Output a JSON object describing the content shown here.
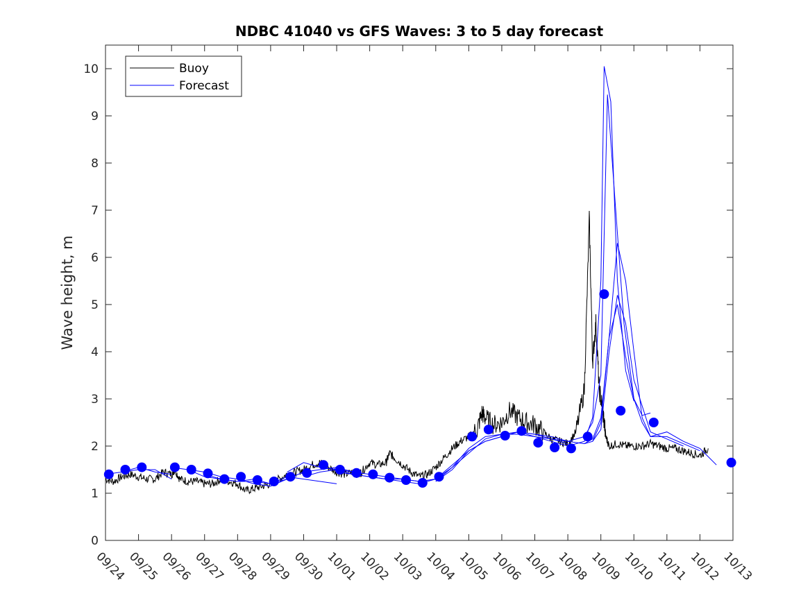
{
  "chart_data": {
    "type": "line",
    "title": "NDBC 41040 vs GFS Waves: 3 to 5 day forecast",
    "xlabel": "",
    "ylabel": "Wave height, m",
    "xlim": [
      0,
      19
    ],
    "ylim": [
      0,
      10.5
    ],
    "x_tick_labels": [
      "09/24",
      "09/25",
      "09/26",
      "09/27",
      "09/28",
      "09/29",
      "09/30",
      "10/01",
      "10/02",
      "10/03",
      "10/04",
      "10/05",
      "10/06",
      "10/07",
      "10/08",
      "10/09",
      "10/10",
      "10/11",
      "10/12",
      "10/13"
    ],
    "y_ticks": [
      "0",
      "1",
      "2",
      "3",
      "4",
      "5",
      "6",
      "7",
      "8",
      "9",
      "10"
    ],
    "legend": {
      "position": "top-left",
      "entries": [
        "Buoy",
        "Forecast"
      ]
    },
    "colors": {
      "buoy": "#000000",
      "forecast": "#0000ff",
      "axes": "#262626"
    },
    "buoy": {
      "name": "Buoy",
      "x": [
        0.0,
        0.25,
        0.5,
        0.75,
        1.0,
        1.25,
        1.5,
        1.75,
        2.0,
        2.1,
        2.25,
        2.5,
        2.75,
        3.0,
        3.25,
        3.5,
        3.75,
        4.0,
        4.25,
        4.5,
        4.75,
        5.0,
        5.25,
        5.5,
        5.75,
        6.0,
        6.25,
        6.5,
        6.75,
        7.0,
        7.25,
        7.5,
        7.65,
        7.75,
        8.0,
        8.25,
        8.5,
        8.6,
        8.75,
        9.0,
        9.25,
        9.5,
        9.75,
        10.0,
        10.25,
        10.5,
        10.75,
        11.0,
        11.25,
        11.4,
        11.5,
        11.75,
        12.0,
        12.25,
        12.5,
        12.75,
        13.0,
        13.25,
        13.5,
        13.75,
        14.0,
        14.25,
        14.5,
        14.65,
        14.75,
        14.85,
        14.95,
        15.05,
        15.15,
        15.25,
        15.5,
        15.75,
        16.0,
        16.25,
        16.5,
        16.75,
        17.0,
        17.25,
        17.5,
        17.75,
        18.0,
        18.25
      ],
      "values": [
        1.3,
        1.25,
        1.35,
        1.4,
        1.35,
        1.3,
        1.3,
        1.45,
        1.4,
        1.5,
        1.3,
        1.25,
        1.25,
        1.2,
        1.2,
        1.3,
        1.25,
        1.2,
        1.05,
        1.1,
        1.15,
        1.2,
        1.3,
        1.4,
        1.45,
        1.5,
        1.6,
        1.65,
        1.55,
        1.45,
        1.4,
        1.45,
        1.4,
        1.45,
        1.65,
        1.6,
        1.65,
        1.85,
        1.75,
        1.6,
        1.45,
        1.35,
        1.4,
        1.55,
        1.75,
        1.95,
        2.1,
        2.2,
        2.35,
        2.7,
        2.6,
        2.45,
        2.5,
        2.75,
        2.6,
        2.5,
        2.45,
        2.3,
        2.15,
        2.1,
        2.05,
        2.3,
        3.2,
        6.8,
        3.8,
        4.6,
        3.2,
        2.8,
        2.2,
        2.0,
        2.05,
        2.0,
        2.0,
        2.0,
        2.05,
        2.0,
        1.95,
        1.95,
        1.9,
        1.85,
        1.8,
        1.95
      ]
    },
    "forecast_runs": [
      {
        "x": [
          0.0,
          0.5,
          1.0,
          1.5,
          2.0
        ],
        "values": [
          1.4,
          1.45,
          1.55,
          1.45,
          1.4
        ]
      },
      {
        "x": [
          0.5,
          1.0,
          1.5,
          2.0
        ],
        "values": [
          1.45,
          1.5,
          1.5,
          1.3
        ]
      },
      {
        "x": [
          2.0,
          2.5,
          3.0,
          3.5,
          4.0,
          4.5,
          5.0,
          5.5,
          6.0,
          6.5,
          7.0
        ],
        "values": [
          1.55,
          1.5,
          1.35,
          1.3,
          1.25,
          1.25,
          1.2,
          1.35,
          1.3,
          1.25,
          1.2
        ]
      },
      {
        "x": [
          2.5,
          3.0,
          3.5,
          4.0,
          4.5,
          5.0,
          5.5
        ],
        "values": [
          1.5,
          1.45,
          1.35,
          1.3,
          1.2,
          1.15,
          1.3
        ]
      },
      {
        "x": [
          3.0,
          3.5,
          4.0,
          4.5,
          5.0,
          5.5,
          6.0,
          6.5,
          7.0,
          7.5
        ],
        "values": [
          1.4,
          1.3,
          1.25,
          1.3,
          1.2,
          1.3,
          1.45,
          1.5,
          1.55,
          1.45
        ]
      },
      {
        "x": [
          5.5,
          6.0,
          6.5,
          7.0,
          7.5,
          8.0,
          8.5,
          9.0
        ],
        "values": [
          1.45,
          1.65,
          1.55,
          1.5,
          1.45,
          1.4,
          1.35,
          1.3
        ]
      },
      {
        "x": [
          6.0,
          6.5,
          7.0,
          7.5,
          8.0,
          8.5,
          9.0,
          9.5,
          10.0
        ],
        "values": [
          1.35,
          1.45,
          1.5,
          1.4,
          1.35,
          1.3,
          1.3,
          1.25,
          1.3
        ]
      },
      {
        "x": [
          7.0,
          7.5,
          8.0,
          8.5,
          9.0,
          9.5,
          10.0,
          10.5,
          11.0,
          11.5,
          12.0,
          12.5,
          13.0,
          13.5,
          14.0
        ],
        "values": [
          1.45,
          1.4,
          1.35,
          1.3,
          1.25,
          1.2,
          1.3,
          1.6,
          1.9,
          2.1,
          2.2,
          2.3,
          2.25,
          2.15,
          2.05
        ]
      },
      {
        "x": [
          9.0,
          9.5,
          10.0,
          10.5,
          11.0,
          11.5,
          12.0,
          12.5,
          13.0,
          13.5,
          14.0,
          14.5,
          14.75,
          15.0,
          15.1,
          15.3,
          15.5,
          15.75,
          16.0
        ],
        "values": [
          1.3,
          1.25,
          1.3,
          1.55,
          1.85,
          2.15,
          2.25,
          2.3,
          2.2,
          2.1,
          2.0,
          2.1,
          2.6,
          5.5,
          10.05,
          9.3,
          5.5,
          3.6,
          2.95
        ]
      },
      {
        "x": [
          10.0,
          10.5,
          11.0,
          11.5,
          12.0,
          12.5,
          13.0,
          13.5,
          14.0,
          14.5,
          14.75,
          15.0,
          15.2,
          15.45,
          15.7,
          16.0,
          16.25,
          16.5
        ],
        "values": [
          1.25,
          1.55,
          1.95,
          2.2,
          2.25,
          2.25,
          2.2,
          2.15,
          2.1,
          2.2,
          2.5,
          3.5,
          9.45,
          7.0,
          4.6,
          3.0,
          2.65,
          2.7
        ]
      },
      {
        "x": [
          10.0,
          10.5,
          11.0,
          11.5,
          12.0,
          12.5,
          13.0,
          13.5,
          14.0,
          14.5,
          14.75,
          15.0,
          15.25,
          15.5,
          15.75,
          16.0,
          16.25,
          16.5,
          17.0,
          17.5,
          18.0,
          18.5
        ],
        "values": [
          1.25,
          1.5,
          1.9,
          2.1,
          2.2,
          2.3,
          2.25,
          2.2,
          2.1,
          2.05,
          2.1,
          2.5,
          4.3,
          6.3,
          5.5,
          4.0,
          2.6,
          2.2,
          2.3,
          2.1,
          1.95,
          1.6
        ]
      },
      {
        "x": [
          14.5,
          14.75,
          15.0,
          15.25,
          15.5,
          15.75,
          16.0,
          16.25,
          16.5,
          17.0,
          17.5,
          18.0
        ],
        "values": [
          2.05,
          2.15,
          2.6,
          4.3,
          5.0,
          3.9,
          3.0,
          2.5,
          2.2,
          2.2,
          2.05,
          1.9
        ]
      },
      {
        "x": [
          14.75,
          15.0,
          15.25,
          15.5,
          15.75,
          16.0,
          16.5,
          17.0,
          17.5
        ],
        "values": [
          2.1,
          2.35,
          4.0,
          5.2,
          4.6,
          3.4,
          2.3,
          2.15,
          2.0
        ]
      }
    ],
    "forecast_markers": {
      "x": [
        0.1,
        0.6,
        1.1,
        2.1,
        2.6,
        3.1,
        3.6,
        4.1,
        4.6,
        5.1,
        5.6,
        6.1,
        6.6,
        7.1,
        7.6,
        8.1,
        8.6,
        9.1,
        9.6,
        10.1,
        11.1,
        11.6,
        12.1,
        12.6,
        13.1,
        13.6,
        14.1,
        14.6,
        15.1,
        15.6,
        16.6,
        18.95
      ],
      "values": [
        1.4,
        1.5,
        1.55,
        1.55,
        1.5,
        1.42,
        1.3,
        1.35,
        1.28,
        1.25,
        1.35,
        1.43,
        1.6,
        1.5,
        1.43,
        1.4,
        1.33,
        1.28,
        1.22,
        1.35,
        2.2,
        2.35,
        2.22,
        2.32,
        2.07,
        1.97,
        1.95,
        2.2,
        5.22,
        2.75,
        2.5,
        1.65
      ]
    }
  }
}
